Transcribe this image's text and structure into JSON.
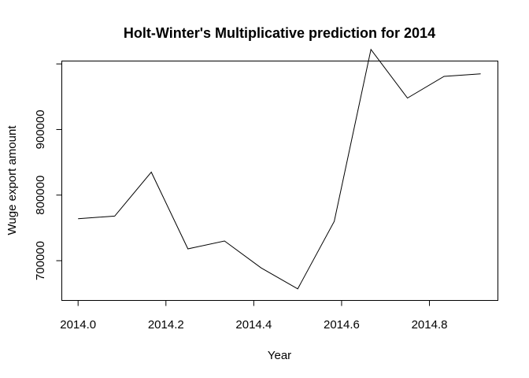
{
  "chart_data": {
    "type": "line",
    "title": "Holt-Winter's Multiplicative prediction for 2014",
    "xlabel": "Year",
    "ylabel": "Wuge export amount",
    "xlim": [
      2013.962,
      2014.955
    ],
    "ylim": [
      640000,
      1005000
    ],
    "xticks": [
      2014.0,
      2014.2,
      2014.4,
      2014.6,
      2014.8
    ],
    "xtick_labels": [
      "2014.0",
      "2014.2",
      "2014.4",
      "2014.6",
      "2014.8"
    ],
    "yticks": [
      700000,
      800000,
      900000,
      1000000
    ],
    "ytick_labels": [
      "700000",
      "800000",
      "900000",
      ""
    ],
    "grid": false,
    "series": [
      {
        "x": [
          2014.0,
          2014.0833,
          2014.1667,
          2014.25,
          2014.3333,
          2014.4167,
          2014.5,
          2014.5833,
          2014.6667,
          2014.75,
          2014.8333,
          2014.9167
        ],
        "y": [
          764000,
          768000,
          835000,
          718000,
          730000,
          689000,
          657000,
          760000,
          1022000,
          948000,
          981000,
          985000
        ]
      }
    ]
  }
}
